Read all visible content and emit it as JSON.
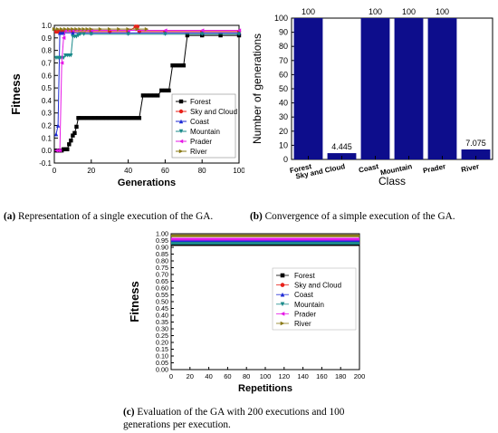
{
  "chart_data": [
    {
      "type": "line",
      "panel": "a",
      "xlabel": "Generations",
      "ylabel": "Fitness",
      "xlim": [
        0,
        100
      ],
      "ylim": [
        -0.1,
        1.0
      ],
      "xticks": [
        "0",
        "20",
        "40",
        "60",
        "80",
        "100"
      ],
      "yticks": [
        "-0.1",
        "0.0",
        "0.1",
        "0.2",
        "0.3",
        "0.4",
        "0.5",
        "0.6",
        "0.7",
        "0.8",
        "0.9",
        "1.0"
      ],
      "legend_position": "lower-right",
      "series": [
        {
          "name": "Forest",
          "color": "#000000",
          "marker": "square",
          "points": [
            [
              1,
              0
            ],
            [
              2,
              0
            ],
            [
              3,
              0
            ],
            [
              4,
              0
            ],
            [
              5,
              0.01
            ],
            [
              6,
              0.01
            ],
            [
              7,
              0.01
            ],
            [
              8,
              0.05
            ],
            [
              9,
              0.08
            ],
            [
              10,
              0.12
            ],
            [
              11,
              0.14
            ],
            [
              12,
              0.19
            ],
            [
              13,
              0.26
            ],
            [
              14,
              0.26
            ],
            [
              16,
              0.26
            ],
            [
              18,
              0.26
            ],
            [
              20,
              0.26
            ],
            [
              22,
              0.26
            ],
            [
              24,
              0.26
            ],
            [
              26,
              0.26
            ],
            [
              28,
              0.26
            ],
            [
              30,
              0.26
            ],
            [
              32,
              0.26
            ],
            [
              34,
              0.26
            ],
            [
              36,
              0.26
            ],
            [
              38,
              0.26
            ],
            [
              40,
              0.26
            ],
            [
              42,
              0.26
            ],
            [
              44,
              0.26
            ],
            [
              46,
              0.26
            ],
            [
              48,
              0.44
            ],
            [
              50,
              0.44
            ],
            [
              52,
              0.44
            ],
            [
              54,
              0.44
            ],
            [
              56,
              0.44
            ],
            [
              58,
              0.48
            ],
            [
              60,
              0.48
            ],
            [
              62,
              0.48
            ],
            [
              64,
              0.68
            ],
            [
              66,
              0.68
            ],
            [
              68,
              0.68
            ],
            [
              70,
              0.68
            ],
            [
              72,
              0.92
            ],
            [
              80,
              0.92
            ],
            [
              90,
              0.92
            ],
            [
              100,
              0.92
            ]
          ]
        },
        {
          "name": "Sky and Cloud",
          "color": "#e8221b",
          "marker": "circle",
          "points": [
            [
              1,
              0.95
            ],
            [
              2,
              0.95
            ],
            [
              3,
              0.95
            ],
            [
              4,
              0.95
            ],
            [
              5,
              0.95
            ],
            [
              10,
              0.95
            ],
            [
              20,
              0.95
            ],
            [
              30,
              0.95
            ],
            [
              40,
              0.95
            ],
            [
              44,
              0.99
            ],
            [
              45,
              0.99
            ],
            [
              46,
              0.95
            ],
            [
              60,
              0.95
            ],
            [
              80,
              0.95
            ],
            [
              100,
              0.95
            ]
          ]
        },
        {
          "name": "Coast",
          "color": "#1f2bd6",
          "marker": "triangle-up",
          "points": [
            [
              1,
              0.13
            ],
            [
              2,
              0.2
            ],
            [
              3,
              0.94
            ],
            [
              4,
              0.94
            ],
            [
              5,
              0.94
            ],
            [
              10,
              0.94
            ],
            [
              20,
              0.94
            ],
            [
              40,
              0.94
            ],
            [
              60,
              0.94
            ],
            [
              80,
              0.94
            ],
            [
              100,
              0.94
            ]
          ]
        },
        {
          "name": "Mountain",
          "color": "#1a8a8a",
          "marker": "triangle-down",
          "points": [
            [
              1,
              0.74
            ],
            [
              2,
              0.74
            ],
            [
              3,
              0.74
            ],
            [
              4,
              0.74
            ],
            [
              5,
              0.74
            ],
            [
              6,
              0.76
            ],
            [
              7,
              0.76
            ],
            [
              8,
              0.76
            ],
            [
              9,
              0.76
            ],
            [
              10,
              0.91
            ],
            [
              11,
              0.91
            ],
            [
              12,
              0.91
            ],
            [
              13,
              0.92
            ],
            [
              14,
              0.93
            ],
            [
              16,
              0.93
            ],
            [
              20,
              0.93
            ],
            [
              40,
              0.93
            ],
            [
              60,
              0.93
            ],
            [
              80,
              0.93
            ],
            [
              100,
              0.93
            ]
          ]
        },
        {
          "name": "Prader",
          "color": "#e619e6",
          "marker": "triangle-left",
          "points": [
            [
              1,
              0
            ],
            [
              2,
              0
            ],
            [
              3,
              0
            ],
            [
              4,
              0.7
            ],
            [
              5,
              0.9
            ],
            [
              6,
              0.96
            ],
            [
              8,
              0.96
            ],
            [
              10,
              0.96
            ],
            [
              20,
              0.96
            ],
            [
              40,
              0.96
            ],
            [
              60,
              0.96
            ],
            [
              80,
              0.96
            ],
            [
              100,
              0.96
            ]
          ]
        },
        {
          "name": "River",
          "color": "#8a7a16",
          "marker": "triangle-right",
          "points": [
            [
              0,
              0.97
            ],
            [
              2,
              0.97
            ],
            [
              4,
              0.97
            ],
            [
              6,
              0.97
            ],
            [
              8,
              0.97
            ],
            [
              10,
              0.97
            ],
            [
              12,
              0.97
            ],
            [
              14,
              0.97
            ],
            [
              16,
              0.97
            ],
            [
              18,
              0.97
            ],
            [
              20,
              0.97
            ],
            [
              25,
              0.97
            ],
            [
              30,
              0.97
            ],
            [
              35,
              0.97
            ],
            [
              40,
              0.97
            ],
            [
              45,
              0.97
            ],
            [
              50,
              0.97
            ]
          ]
        }
      ]
    },
    {
      "type": "bar",
      "panel": "b",
      "xlabel": "Class",
      "ylabel": "Number of generations",
      "ylim": [
        0,
        100
      ],
      "yticks": [
        "0",
        "10",
        "20",
        "30",
        "40",
        "50",
        "60",
        "70",
        "80",
        "90",
        "100"
      ],
      "categories": [
        "Forest",
        "Sky and Cloud",
        "Coast",
        "Mountain",
        "Prader",
        "River"
      ],
      "values": [
        100,
        4.445,
        100,
        100,
        100,
        7.075
      ],
      "value_labels": [
        "100",
        "4.445",
        "100",
        "100",
        "100",
        "7.075"
      ],
      "bar_color": "#0d0d8c"
    },
    {
      "type": "line",
      "panel": "c",
      "xlabel": "Repetitions",
      "ylabel": "Fitness",
      "xlim": [
        0,
        200
      ],
      "ylim": [
        0.0,
        1.0
      ],
      "xticks": [
        "0",
        "20",
        "40",
        "60",
        "80",
        "100",
        "120",
        "140",
        "160",
        "180",
        "200"
      ],
      "yticks": [
        "0.00",
        "0.05",
        "0.10",
        "0.15",
        "0.20",
        "0.25",
        "0.30",
        "0.35",
        "0.40",
        "0.45",
        "0.50",
        "0.55",
        "0.60",
        "0.65",
        "0.70",
        "0.75",
        "0.80",
        "0.85",
        "0.90",
        "0.95",
        "1.00"
      ],
      "legend_position": "center-right",
      "series": [
        {
          "name": "Forest",
          "color": "#000000",
          "marker": "square",
          "points": [
            [
              0,
              0.92
            ],
            [
              200,
              0.92
            ]
          ]
        },
        {
          "name": "Sky and Cloud",
          "color": "#e8221b",
          "marker": "circle",
          "points": [
            [
              0,
              0.95
            ],
            [
              200,
              0.95
            ]
          ]
        },
        {
          "name": "Coast",
          "color": "#1f2bd6",
          "marker": "triangle-up",
          "points": [
            [
              0,
              0.94
            ],
            [
              200,
              0.94
            ]
          ]
        },
        {
          "name": "Mountain",
          "color": "#1a8a8a",
          "marker": "triangle-down",
          "points": [
            [
              0,
              0.93
            ],
            [
              200,
              0.93
            ]
          ]
        },
        {
          "name": "Prader",
          "color": "#e619e6",
          "marker": "triangle-left",
          "points": [
            [
              0,
              0.96
            ],
            [
              200,
              0.96
            ]
          ]
        },
        {
          "name": "River",
          "color": "#8a7a16",
          "marker": "triangle-right",
          "points": [
            [
              0,
              0.985
            ],
            [
              200,
              0.985
            ]
          ]
        }
      ]
    }
  ],
  "captions": {
    "a_tag": "(a)",
    "a_text": "Representation of a single execution of the GA.",
    "b_tag": "(b)",
    "b_text": "Convergence of a simple execution of the GA.",
    "c_tag": "(c)",
    "c_text": "Evaluation of the GA with 200 executions and 100 generations per execution."
  }
}
